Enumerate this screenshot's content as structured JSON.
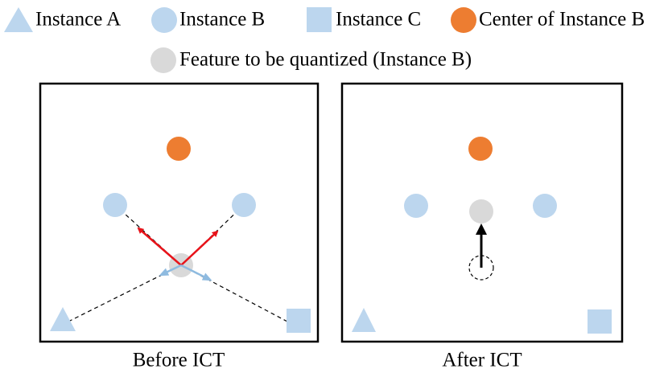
{
  "legend": [
    {
      "label": "Instance A"
    },
    {
      "label": "Instance B"
    },
    {
      "label": "Instance C"
    },
    {
      "label": "Center of Instance B"
    },
    {
      "label": "Feature to be quantized (Instance B)"
    }
  ],
  "panels": [
    {
      "caption": "Before ICT"
    },
    {
      "caption": "After ICT"
    }
  ]
}
